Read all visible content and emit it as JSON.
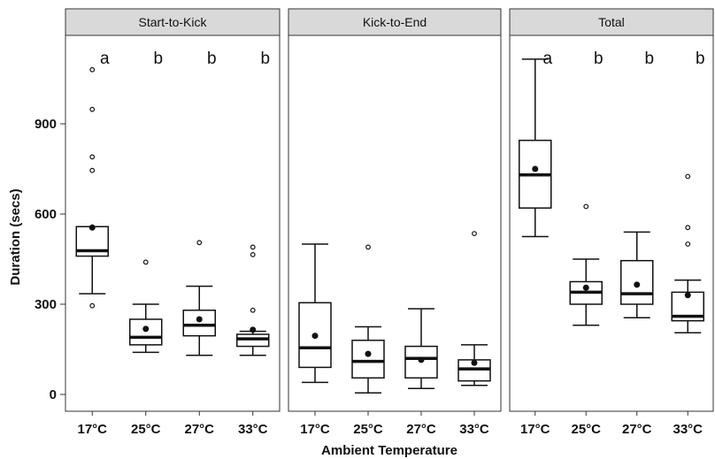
{
  "chart_data": {
    "type": "boxplot",
    "ylabel": "Duration (secs)",
    "xlabel": "Ambient Temperature",
    "categories": [
      "17°C",
      "25°C",
      "27°C",
      "33°C"
    ],
    "y_ticks": [
      "0",
      "300",
      "600",
      "900"
    ],
    "ylim": [
      -30,
      1160
    ],
    "grid": false,
    "legend": "none",
    "panels": [
      {
        "title": "Start-to-Kick",
        "letters": [
          "a",
          "b",
          "b",
          "b"
        ],
        "boxes": [
          {
            "min": 335,
            "q1": 460,
            "median": 478,
            "q3": 558,
            "max": 558,
            "mean": 555,
            "outliers": [
              295,
              745,
              790,
              948,
              1080
            ]
          },
          {
            "min": 140,
            "q1": 165,
            "median": 190,
            "q3": 250,
            "max": 300,
            "mean": 218,
            "outliers": [
              440
            ]
          },
          {
            "min": 130,
            "q1": 195,
            "median": 230,
            "q3": 280,
            "max": 360,
            "mean": 250,
            "outliers": [
              505
            ]
          },
          {
            "min": 130,
            "q1": 160,
            "median": 185,
            "q3": 200,
            "max": 210,
            "mean": 215,
            "outliers": [
              280,
              465,
              490
            ]
          }
        ]
      },
      {
        "title": "Kick-to-End",
        "letters": [],
        "boxes": [
          {
            "min": 40,
            "q1": 90,
            "median": 155,
            "q3": 305,
            "max": 500,
            "mean": 195,
            "outliers": []
          },
          {
            "min": 5,
            "q1": 55,
            "median": 110,
            "q3": 180,
            "max": 225,
            "mean": 135,
            "outliers": [
              490
            ]
          },
          {
            "min": 20,
            "q1": 55,
            "median": 120,
            "q3": 160,
            "max": 285,
            "mean": 115,
            "outliers": []
          },
          {
            "min": 30,
            "q1": 45,
            "median": 85,
            "q3": 115,
            "max": 165,
            "mean": 105,
            "outliers": [
              535
            ]
          }
        ]
      },
      {
        "title": "Total",
        "letters": [
          "a",
          "b",
          "b",
          "b"
        ],
        "boxes": [
          {
            "min": 525,
            "q1": 620,
            "median": 730,
            "q3": 845,
            "max": 1115,
            "mean": 750,
            "outliers": []
          },
          {
            "min": 230,
            "q1": 300,
            "median": 340,
            "q3": 375,
            "max": 450,
            "mean": 355,
            "outliers": [
              625
            ]
          },
          {
            "min": 255,
            "q1": 300,
            "median": 335,
            "q3": 445,
            "max": 540,
            "mean": 365,
            "outliers": []
          },
          {
            "min": 205,
            "q1": 245,
            "median": 260,
            "q3": 340,
            "max": 380,
            "mean": 330,
            "outliers": [
              500,
              555,
              725
            ]
          }
        ]
      }
    ]
  }
}
